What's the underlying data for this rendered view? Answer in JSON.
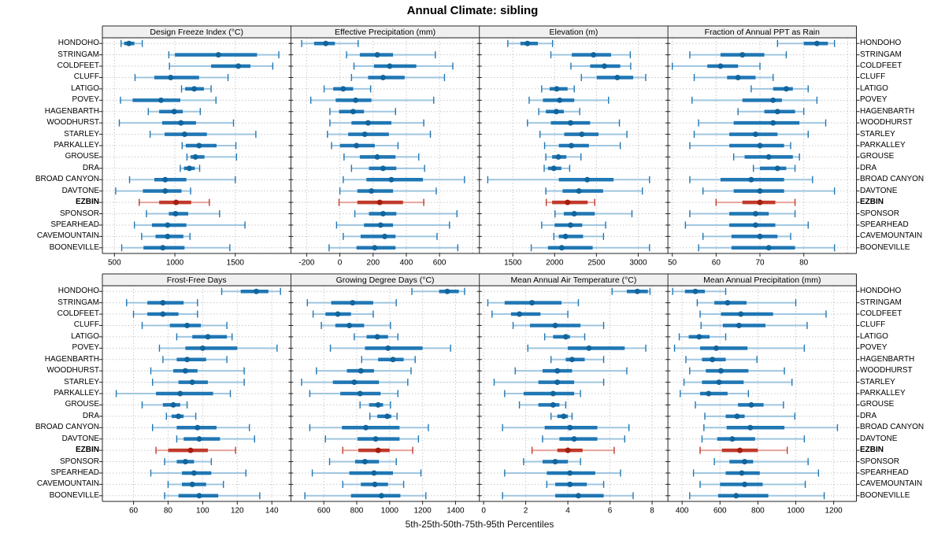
{
  "title": "Annual Climate: sibling",
  "caption": "5th-25th-50th-75th-95th Percentiles",
  "highlight_site": "EZBIN",
  "colors": {
    "blue_light": "#9fc6e0",
    "blue_band": "#2077b4",
    "blue_dot": "#12659c",
    "red_light": "#e7a49c",
    "red_band": "#c03a2b",
    "red_dot": "#a61e0f",
    "grid": "#c9c9c9",
    "border": "#222222",
    "header_bg": "#f0f0f0"
  },
  "sites": [
    "HONDOHO",
    "STRINGAM",
    "COLDFEET",
    "CLUFF",
    "LATIGO",
    "POVEY",
    "HAGENBARTH",
    "WOODHURST",
    "STARLEY",
    "PARKALLEY",
    "GROUSE",
    "DRA",
    "BROAD CANYON",
    "DAVTONE",
    "EZBIN",
    "SPONSOR",
    "SPEARHEAD",
    "CAVEMOUNTAIN",
    "BOONEVILLE"
  ],
  "chart_data": {
    "type": "dot-interval",
    "percentiles": [
      5,
      25,
      50,
      75,
      95
    ],
    "legend": "rows are sites; each row shows 5th-25th-50th-75th-95th percentile interval with median dot; EZBIN highlighted red",
    "panels": [
      {
        "title": "Design Freeze Index (°C)",
        "xlim": [
          400,
          1960
        ],
        "xticks": [
          500,
          1000,
          1500
        ],
        "values": [
          [
            555,
            580,
            620,
            665,
            730
          ],
          [
            950,
            1000,
            1360,
            1680,
            1860
          ],
          [
            955,
            1300,
            1525,
            1625,
            1810
          ],
          [
            670,
            830,
            965,
            1200,
            1440
          ],
          [
            1055,
            1085,
            1160,
            1240,
            1300
          ],
          [
            550,
            650,
            885,
            1045,
            1340
          ],
          [
            780,
            870,
            995,
            1065,
            1210
          ],
          [
            540,
            895,
            1050,
            1175,
            1485
          ],
          [
            795,
            915,
            1080,
            1265,
            1670
          ],
          [
            1060,
            1090,
            1200,
            1345,
            1505
          ],
          [
            1100,
            1130,
            1170,
            1245,
            1510
          ],
          [
            1045,
            1075,
            1120,
            1165,
            1205
          ],
          [
            625,
            830,
            920,
            1095,
            1500
          ],
          [
            510,
            735,
            920,
            1055,
            1130
          ],
          [
            705,
            870,
            1010,
            1135,
            1285
          ],
          [
            765,
            950,
            1005,
            1110,
            1370
          ],
          [
            665,
            810,
            940,
            1095,
            1580
          ],
          [
            725,
            840,
            940,
            1070,
            1125
          ],
          [
            560,
            740,
            900,
            1080,
            1455
          ]
        ]
      },
      {
        "title": "Effective Precipitation (mm)",
        "xlim": [
          -295,
          840
        ],
        "xticks": [
          -200,
          0,
          200,
          400,
          600
        ],
        "xgrid_extra": [
          800
        ],
        "values": [
          [
            -230,
            -155,
            -85,
            -30,
            110
          ],
          [
            40,
            120,
            225,
            320,
            575
          ],
          [
            85,
            205,
            300,
            460,
            680
          ],
          [
            70,
            170,
            260,
            390,
            630
          ],
          [
            -95,
            -40,
            20,
            80,
            185
          ],
          [
            -175,
            -25,
            95,
            190,
            565
          ],
          [
            -60,
            -5,
            80,
            145,
            335
          ],
          [
            -60,
            70,
            170,
            310,
            505
          ],
          [
            -75,
            50,
            150,
            295,
            545
          ],
          [
            -50,
            0,
            100,
            210,
            350
          ],
          [
            25,
            120,
            225,
            335,
            475
          ],
          [
            70,
            175,
            260,
            340,
            510
          ],
          [
            20,
            160,
            310,
            500,
            750
          ],
          [
            0,
            105,
            190,
            320,
            580
          ],
          [
            -5,
            105,
            240,
            380,
            505
          ],
          [
            90,
            175,
            260,
            340,
            705
          ],
          [
            -20,
            145,
            245,
            320,
            660
          ],
          [
            20,
            125,
            270,
            335,
            585
          ],
          [
            -65,
            100,
            210,
            335,
            710
          ]
        ]
      },
      {
        "title": "Elevation (m)",
        "xlim": [
          1100,
          3355
        ],
        "xticks": [
          1500,
          2000,
          2500,
          3000
        ],
        "values": [
          [
            1440,
            1590,
            1675,
            1800,
            1975
          ],
          [
            1955,
            2205,
            2465,
            2675,
            2905
          ],
          [
            2195,
            2425,
            2595,
            2785,
            2910
          ],
          [
            2320,
            2505,
            2750,
            2940,
            3090
          ],
          [
            1845,
            1940,
            2025,
            2155,
            2235
          ],
          [
            1695,
            1860,
            2060,
            2235,
            2645
          ],
          [
            1810,
            1895,
            2020,
            2110,
            2300
          ],
          [
            1675,
            1955,
            2190,
            2425,
            2775
          ],
          [
            1825,
            2115,
            2325,
            2525,
            2865
          ],
          [
            1880,
            2050,
            2200,
            2410,
            2785
          ],
          [
            1895,
            1970,
            2045,
            2140,
            2315
          ],
          [
            1875,
            1920,
            1990,
            2080,
            2180
          ],
          [
            1200,
            2050,
            2390,
            2705,
            3135
          ],
          [
            1895,
            2095,
            2290,
            2580,
            3050
          ],
          [
            1900,
            1970,
            2155,
            2395,
            2480
          ],
          [
            2005,
            2110,
            2235,
            2480,
            2925
          ],
          [
            1845,
            2000,
            2190,
            2330,
            2610
          ],
          [
            1990,
            2050,
            2130,
            2340,
            2585
          ],
          [
            1720,
            1920,
            2085,
            2455,
            3135
          ]
        ]
      },
      {
        "title": "Fraction of Annual PPT as Rain",
        "xlim": [
          49,
          92
        ],
        "xticks": [
          50,
          60,
          70,
          80
        ],
        "xgrid_extra": [
          90
        ],
        "values": [
          [
            74,
            80,
            83,
            85.5,
            87
          ],
          [
            54,
            61,
            66,
            71,
            76
          ],
          [
            50,
            58,
            61,
            65,
            70
          ],
          [
            55,
            62.5,
            65,
            69,
            73
          ],
          [
            68,
            73,
            76,
            77.5,
            81
          ],
          [
            54.5,
            66,
            73,
            75,
            83
          ],
          [
            65,
            71,
            74,
            78,
            80
          ],
          [
            56,
            64,
            73,
            79,
            85
          ],
          [
            55,
            63,
            69,
            74,
            81
          ],
          [
            54,
            63,
            70,
            75.5,
            77
          ],
          [
            64,
            66.5,
            72,
            77.5,
            79
          ],
          [
            68.5,
            70,
            74,
            76,
            78
          ],
          [
            54,
            61,
            68,
            75.5,
            82
          ],
          [
            57,
            64,
            70,
            75.5,
            87
          ],
          [
            60,
            66,
            70,
            73.5,
            78
          ],
          [
            54,
            63,
            69,
            72,
            78
          ],
          [
            53,
            63,
            69,
            73.5,
            81
          ],
          [
            57,
            63.5,
            70,
            74,
            77
          ],
          [
            56,
            63.5,
            72,
            78,
            87
          ]
        ]
      },
      {
        "title": "Frost-Free Days",
        "xlim": [
          42,
          151
        ],
        "xticks": [
          60,
          80,
          100,
          120,
          140
        ],
        "values": [
          [
            111,
            122,
            131,
            138,
            145
          ],
          [
            56,
            68,
            77,
            89,
            97
          ],
          [
            60,
            68,
            77,
            86,
            97
          ],
          [
            65,
            81,
            91,
            99,
            114
          ],
          [
            85,
            94,
            103,
            114,
            117
          ],
          [
            75,
            90,
            100,
            120,
            143
          ],
          [
            77,
            85,
            91,
            102,
            114
          ],
          [
            70,
            83,
            90,
            97,
            124
          ],
          [
            71,
            86,
            94,
            103,
            124
          ],
          [
            50,
            73,
            87,
            106,
            116
          ],
          [
            65,
            77,
            83,
            87,
            91
          ],
          [
            79,
            82,
            86,
            89,
            96
          ],
          [
            71,
            85,
            97,
            108,
            127
          ],
          [
            85,
            89,
            98,
            110,
            130
          ],
          [
            73,
            80,
            93,
            103,
            119
          ],
          [
            78,
            85,
            90,
            95,
            105
          ],
          [
            70,
            88,
            95,
            105,
            125
          ],
          [
            80,
            88,
            94,
            102,
            112
          ],
          [
            78,
            86,
            98,
            109,
            133
          ]
        ]
      },
      {
        "title": "Growing Degree Days (°C)",
        "xlim": [
          400,
          1545
        ],
        "xticks": [
          600,
          800,
          1000,
          1200,
          1400
        ],
        "values": [
          [
            1135,
            1300,
            1350,
            1420,
            1455
          ],
          [
            500,
            645,
            775,
            900,
            1040
          ],
          [
            535,
            610,
            685,
            765,
            900
          ],
          [
            585,
            670,
            755,
            845,
            1005
          ],
          [
            785,
            860,
            925,
            990,
            1050
          ],
          [
            640,
            850,
            990,
            1200,
            1370
          ],
          [
            830,
            930,
            1020,
            1085,
            1155
          ],
          [
            555,
            740,
            825,
            905,
            1130
          ],
          [
            465,
            655,
            785,
            935,
            1110
          ],
          [
            515,
            700,
            820,
            945,
            1050
          ],
          [
            820,
            875,
            930,
            960,
            1005
          ],
          [
            880,
            925,
            985,
            1010,
            1045
          ],
          [
            515,
            710,
            855,
            1060,
            1235
          ],
          [
            610,
            805,
            915,
            1060,
            1175
          ],
          [
            715,
            810,
            930,
            1000,
            1140
          ],
          [
            635,
            790,
            850,
            935,
            1040
          ],
          [
            530,
            755,
            905,
            1020,
            1190
          ],
          [
            715,
            825,
            910,
            990,
            1085
          ],
          [
            485,
            765,
            950,
            1065,
            1220
          ]
        ]
      },
      {
        "title": "Mean Annual Air Temperature (°C)",
        "xlim": [
          -0.2,
          8.75
        ],
        "xticks": [
          0,
          2,
          4,
          6,
          8
        ],
        "values": [
          [
            6.1,
            6.8,
            7.3,
            7.8,
            7.9
          ],
          [
            0.2,
            1.0,
            2.3,
            3.7,
            4.5
          ],
          [
            0.4,
            1.3,
            1.7,
            2.7,
            4.0
          ],
          [
            1.4,
            2.2,
            3.4,
            4.6,
            5.7
          ],
          [
            2.9,
            3.3,
            3.9,
            4.1,
            4.8
          ],
          [
            2.1,
            4.0,
            5.0,
            6.7,
            7.7
          ],
          [
            3.2,
            3.9,
            4.2,
            4.8,
            5.7
          ],
          [
            1.5,
            2.8,
            3.5,
            4.2,
            6.8
          ],
          [
            0.5,
            2.6,
            3.5,
            4.3,
            5.7
          ],
          [
            1.0,
            1.9,
            3.3,
            4.3,
            4.6
          ],
          [
            1.7,
            2.6,
            3.3,
            3.6,
            3.9
          ],
          [
            3.2,
            3.5,
            3.8,
            4.0,
            4.2
          ],
          [
            0.9,
            2.9,
            4.1,
            5.4,
            6.9
          ],
          [
            2.8,
            3.6,
            4.3,
            5.4,
            6.7
          ],
          [
            2.3,
            3.5,
            4.0,
            4.7,
            6.2
          ],
          [
            1.9,
            2.8,
            3.4,
            4.0,
            4.6
          ],
          [
            1.0,
            3.0,
            4.1,
            5.3,
            6.5
          ],
          [
            3.0,
            3.4,
            4.1,
            4.9,
            5.7
          ],
          [
            0.9,
            3.4,
            4.5,
            5.7,
            7.1
          ]
        ]
      },
      {
        "title": "Mean Annual Precipitation (mm)",
        "xlim": [
          325,
          1320
        ],
        "xticks": [
          400,
          600,
          800,
          1000,
          1200
        ],
        "values": [
          [
            350,
            415,
            470,
            520,
            630
          ],
          [
            480,
            570,
            640,
            740,
            1000
          ],
          [
            495,
            605,
            710,
            880,
            1160
          ],
          [
            500,
            615,
            700,
            840,
            1060
          ],
          [
            385,
            435,
            490,
            545,
            630
          ],
          [
            360,
            495,
            580,
            745,
            1045
          ],
          [
            420,
            505,
            560,
            630,
            795
          ],
          [
            440,
            525,
            605,
            750,
            940
          ],
          [
            410,
            505,
            595,
            725,
            980
          ],
          [
            390,
            495,
            540,
            640,
            750
          ],
          [
            470,
            695,
            765,
            830,
            935
          ],
          [
            520,
            630,
            690,
            730,
            995
          ],
          [
            515,
            635,
            760,
            940,
            1220
          ],
          [
            505,
            585,
            665,
            785,
            1045
          ],
          [
            495,
            610,
            705,
            800,
            955
          ],
          [
            570,
            650,
            730,
            775,
            1065
          ],
          [
            460,
            630,
            715,
            810,
            1120
          ],
          [
            495,
            600,
            730,
            825,
            1050
          ],
          [
            440,
            590,
            685,
            855,
            1150
          ]
        ]
      }
    ]
  }
}
